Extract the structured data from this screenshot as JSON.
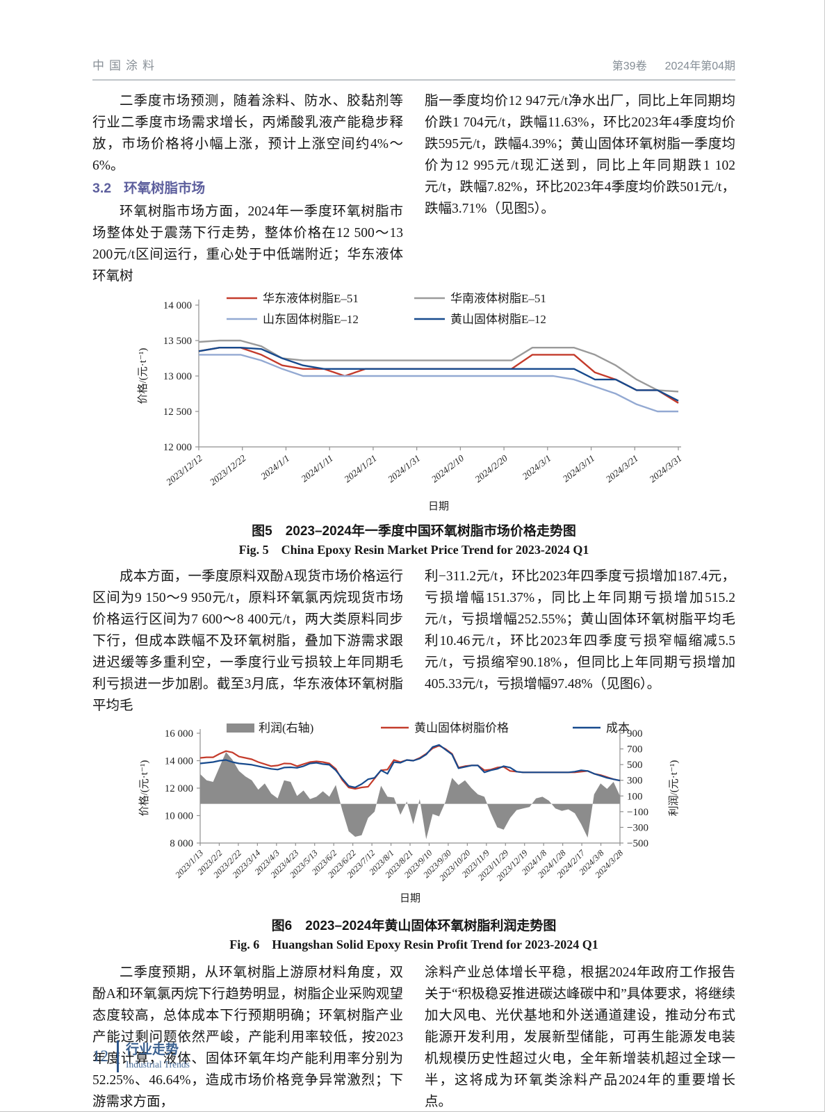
{
  "header": {
    "journal": "中国涂料",
    "issue_volume": "第39卷",
    "issue_no": "2024年第04期"
  },
  "article": {
    "para_q2_forecast": "二季度市场预测，随着涂料、防水、胶黏剂等行业二季度市场需求增长，丙烯酸乳液产能稳步释放，市场价格将小幅上涨，预计上涨空间约4%～6%。",
    "section": {
      "number": "3.2",
      "title": "环氧树脂市场"
    },
    "para_epoxy_left": "环氧树脂市场方面，2024年一季度环氧树脂市场整体处于震荡下行走势，整体价格在12 500～13 200元/t区间运行，重心处于中低端附近；华东液体环氧树",
    "para_epoxy_right": "脂一季度均价12 947元/t净水出厂，同比上年同期均价跌1 704元/t，跌幅11.63%，环比2023年4季度均价跌595元/t，跌幅4.39%；黄山固体环氧树脂一季度均价为12 995元/t现汇送到，同比上年同期跌1 102元/t，跌幅7.82%，环比2023年4季度均价跌501元/t，跌幅3.71%（见图5）。",
    "para_cost_left": "成本方面，一季度原料双酚A现货市场价格运行区间为9 150～9 950元/t，原料环氧氯丙烷现货市场价格运行区间为7 600～8 400元/t，两大类原料同步下行，但成本跌幅不及环氧树脂，叠加下游需求跟进迟缓等多重利空，一季度行业亏损较上年同期毛利亏损进一步加剧。截至3月底，华东液体环氧树脂平均毛",
    "para_cost_right": "利−311.2元/t，环比2023年四季度亏损增加187.4元，亏损增幅151.37%，同比上年同期亏损增加515.2元/t，亏损增幅252.55%；黄山固体环氧树脂平均毛利10.46元/t，环比2023年四季度亏损窄幅缩减5.5元/t，亏损缩窄90.18%，但同比上年同期亏损增加405.33元/t，亏损增幅97.48%（见图6）。",
    "para_outlook_left": "二季度预期，从环氧树脂上游原材料角度，双酚A和环氧氯丙烷下行趋势明显，树脂企业采购观望态度较高，总体成本下行预期明确；环氧树脂产业产能过剩问题依然严峻，产能利用率较低，按2023年度计算，液体、固体环氧年均产能利用率分别为52.25%、46.64%，造成市场价格竞争异常激烈；下游需求方面，",
    "para_outlook_right": "涂料产业总体增长平稳，根据2024年政府工作报告关于“积极稳妥推进碳达峰碳中和”具体要求，将继续加大风电、光伏基地和外送通道建设，推动分布式能源开发利用，发展新型储能，可再生能源发电装机规模历史性超过火电，全年新增装机超过全球一半，这将成为环氧类涂料产品2024年的重要增长点。"
  },
  "fig5": {
    "caption_cn": "图5　2023–2024年一季度中国环氧树脂市场价格走势图",
    "caption_en": "Fig. 5　China Epoxy Resin Market Price Trend for 2023-2024 Q1"
  },
  "fig6": {
    "caption_cn": "图6　2023–2024年黄山固体环氧树脂利润走势图",
    "caption_en": "Fig. 6　Huangshan Solid Epoxy Resin Profit Trend for 2023-2024 Q1"
  },
  "footer": {
    "page_number": "12",
    "section_cn": "行业走势",
    "section_en": "Industrial Trends"
  },
  "chart_data": [
    {
      "type": "line",
      "title": "图5　2023–2024年一季度中国环氧树脂市场价格走势图",
      "title_en": "Fig. 5　China Epoxy Resin Market Price Trend for 2023-2024 Q1",
      "xlabel": "日期",
      "ylabel": "价格/(元·t⁻¹)",
      "ylim": [
        12000,
        14000
      ],
      "ytick_step": 500,
      "grid": false,
      "legend_position": "top-inside",
      "x_tick_labels": [
        "2023/12/12",
        "2023/12/22",
        "2024/1/1",
        "2024/1/11",
        "2024/1/21",
        "2024/1/31",
        "2024/2/10",
        "2024/2/20",
        "2024/3/1",
        "2024/3/11",
        "2024/3/21",
        "2024/3/31"
      ],
      "series": [
        {
          "name": "华东液体树脂E–51",
          "color": "#c43b2b",
          "values": [
            13350,
            13400,
            13400,
            13300,
            13150,
            13100,
            13100,
            13000,
            13100,
            13100,
            13100,
            13100,
            13100,
            13100,
            13100,
            13100,
            13300,
            13300,
            13300,
            13050,
            12950,
            12800,
            12800,
            12620
          ]
        },
        {
          "name": "华南液体树脂E–51",
          "color": "#9a9a9a",
          "values": [
            13480,
            13500,
            13500,
            13420,
            13250,
            13220,
            13220,
            13220,
            13220,
            13220,
            13220,
            13220,
            13220,
            13220,
            13220,
            13220,
            13400,
            13400,
            13400,
            13300,
            13150,
            12950,
            12800,
            12780
          ]
        },
        {
          "name": "山东固体树脂E–12",
          "color": "#93a9d2",
          "values": [
            13300,
            13300,
            13300,
            13220,
            13100,
            13000,
            13000,
            13000,
            13000,
            13000,
            13000,
            13000,
            13000,
            13000,
            13000,
            13000,
            13000,
            13000,
            12950,
            12850,
            12750,
            12600,
            12500,
            12500
          ]
        },
        {
          "name": "黄山固体树脂E–12",
          "color": "#174a8d",
          "values": [
            13350,
            13400,
            13400,
            13380,
            13250,
            13150,
            13100,
            13100,
            13100,
            13100,
            13100,
            13100,
            13100,
            13100,
            13100,
            13100,
            13100,
            13100,
            13100,
            12950,
            12950,
            12800,
            12800,
            12650
          ]
        }
      ]
    },
    {
      "type": "combo",
      "title": "图6　2023–2024年黄山固体环氧树脂利润走势图",
      "title_en": "Fig. 6　Huangshan Solid Epoxy Resin Profit Trend for 2023-2024 Q1",
      "xlabel": "日期",
      "ylabel_left": "价格/(元·t⁻¹)",
      "ylabel_right": "利润/(元·t⁻¹)",
      "ylim_left": [
        8000,
        16000
      ],
      "ylim_right": [
        -500,
        900
      ],
      "ytick_step_left": 2000,
      "ytick_step_right": 200,
      "grid": false,
      "x_tick_labels": [
        "2023/1/13",
        "2023/2/2",
        "2023/2/22",
        "2023/3/14",
        "2023/4/3",
        "2023/4/23",
        "2023/5/13",
        "2023/6/2",
        "2023/6/22",
        "2023/7/12",
        "2023/8/1",
        "2023/8/21",
        "2023/9/10",
        "2023/9/30",
        "2023/10/20",
        "2023/11/9",
        "2023/11/29",
        "2023/12/19",
        "2024/1/8",
        "2024/1/28",
        "2024/2/17",
        "2024/3/8",
        "2024/3/28"
      ],
      "area_series": {
        "name": "利润(右轴)",
        "axis": "right",
        "color": "#8c8c8c",
        "values": [
          380,
          300,
          280,
          470,
          660,
          560,
          420,
          350,
          300,
          180,
          260,
          130,
          70,
          300,
          280,
          100,
          170,
          60,
          90,
          160,
          90,
          240,
          -80,
          -350,
          -420,
          -400,
          -180,
          -100,
          230,
          90,
          80,
          -140,
          30,
          -260,
          60,
          -450,
          -130,
          -160,
          30,
          330,
          240,
          300,
          200,
          120,
          90,
          -120,
          -300,
          -330,
          -180,
          -80,
          -60,
          -40,
          70,
          90,
          40,
          -60,
          -90,
          -70,
          -120,
          -260,
          -430,
          120,
          260,
          190,
          280,
          100
        ]
      },
      "line_series": [
        {
          "name": "黄山固体树脂价格",
          "color": "#c43b2b",
          "values": [
            14200,
            14250,
            14250,
            14500,
            14700,
            14600,
            14300,
            14200,
            14100,
            13900,
            13750,
            13600,
            13650,
            13800,
            13780,
            13600,
            13750,
            13900,
            13950,
            13900,
            13800,
            13400,
            12600,
            12050,
            11950,
            12050,
            12100,
            12700,
            13300,
            13350,
            14050,
            13900,
            14050,
            14000,
            14200,
            14500,
            14900,
            15100,
            14850,
            14500,
            13500,
            13600,
            13650,
            13650,
            13300,
            13350,
            13500,
            13550,
            13250,
            13200,
            13150,
            13150,
            13150,
            13150,
            13150,
            13150,
            13150,
            13150,
            13150,
            13200,
            13250,
            13050,
            12950,
            12800,
            12650,
            12550
          ]
        },
        {
          "name": "成本",
          "color": "#174a8d",
          "values": [
            13800,
            13850,
            13900,
            14000,
            14050,
            13900,
            13800,
            13750,
            13700,
            13600,
            13500,
            13400,
            13350,
            13500,
            13520,
            13480,
            13600,
            13800,
            13850,
            13750,
            13700,
            13300,
            12700,
            12150,
            12050,
            12300,
            12650,
            12750,
            13300,
            13050,
            13900,
            13850,
            14050,
            14000,
            14150,
            14450,
            15000,
            15150,
            14800,
            14450,
            13450,
            13550,
            13650,
            13650,
            13150,
            13300,
            13400,
            13600,
            13500,
            13200,
            13150,
            13150,
            13150,
            13150,
            13150,
            13150,
            13150,
            13150,
            13200,
            13300,
            13250,
            13050,
            12900,
            12750,
            12650,
            12550
          ]
        }
      ]
    }
  ]
}
